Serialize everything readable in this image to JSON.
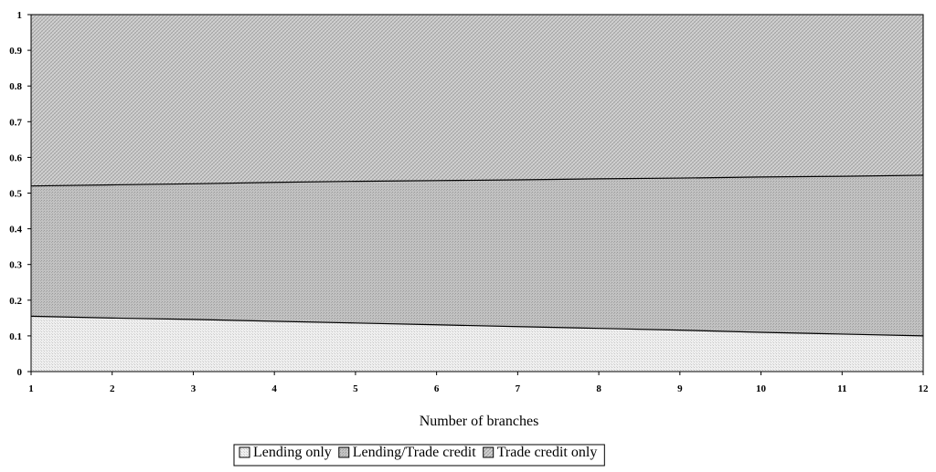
{
  "chart_data": {
    "type": "area",
    "stacked": true,
    "normalized": true,
    "title": "",
    "xlabel": "Number of branches",
    "ylabel": "",
    "x": [
      1,
      2,
      3,
      4,
      5,
      6,
      7,
      8,
      9,
      10,
      11,
      12
    ],
    "xlim": [
      1,
      12
    ],
    "ylim": [
      0,
      1
    ],
    "yticks": [
      "0",
      "0.1",
      "0.2",
      "0.3",
      "0.4",
      "0.5",
      "0.6",
      "0.7",
      "0.8",
      "0.9",
      "1"
    ],
    "xticks": [
      "1",
      "2",
      "3",
      "4",
      "5",
      "6",
      "7",
      "8",
      "9",
      "10",
      "11",
      "12"
    ],
    "legend_position": "bottom",
    "grid": false,
    "series": [
      {
        "name": "Lending only",
        "color": "#e6e6e6",
        "values": [
          0.155,
          0.15,
          0.146,
          0.141,
          0.136,
          0.131,
          0.126,
          0.121,
          0.116,
          0.11,
          0.105,
          0.1
        ]
      },
      {
        "name": "Lending/Trade credit",
        "color": "#bdbdbd",
        "values": [
          0.365,
          0.373,
          0.38,
          0.389,
          0.397,
          0.404,
          0.411,
          0.419,
          0.426,
          0.435,
          0.442,
          0.45
        ]
      },
      {
        "name": "Trade credit only",
        "color": "#c9c9c9",
        "values": [
          0.48,
          0.477,
          0.474,
          0.47,
          0.467,
          0.465,
          0.463,
          0.46,
          0.458,
          0.455,
          0.453,
          0.45
        ]
      }
    ]
  }
}
